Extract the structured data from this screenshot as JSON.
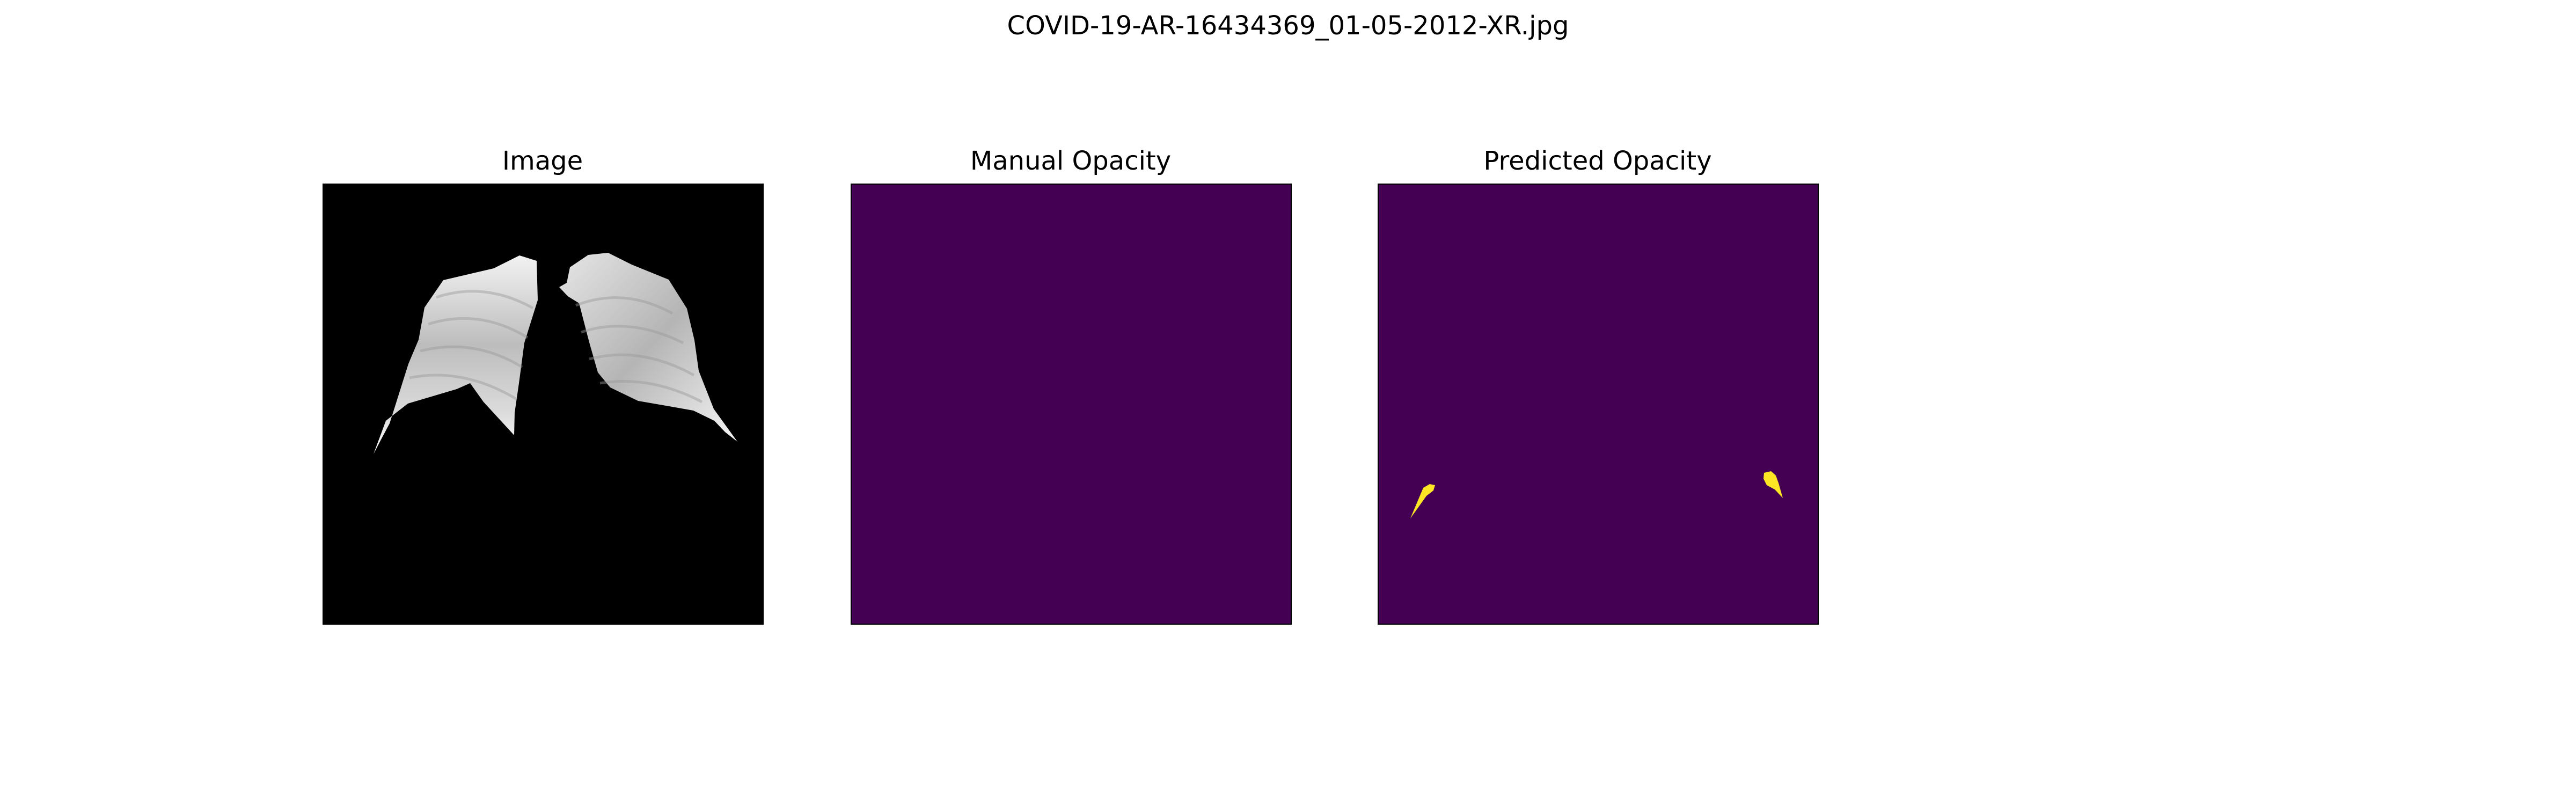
{
  "figure": {
    "suptitle": "COVID-19-AR-16434369_01-05-2012-XR.jpg"
  },
  "panels": [
    {
      "title": "Image",
      "content": "lung-xray"
    },
    {
      "title": "Manual Opacity",
      "content": "empty-mask"
    },
    {
      "title": "Predicted Opacity",
      "content": "predicted-mask"
    }
  ],
  "colors": {
    "background": "#000000",
    "mask_background": "#440154",
    "mask_foreground": "#fde725",
    "lung": "#d8d8d8"
  }
}
